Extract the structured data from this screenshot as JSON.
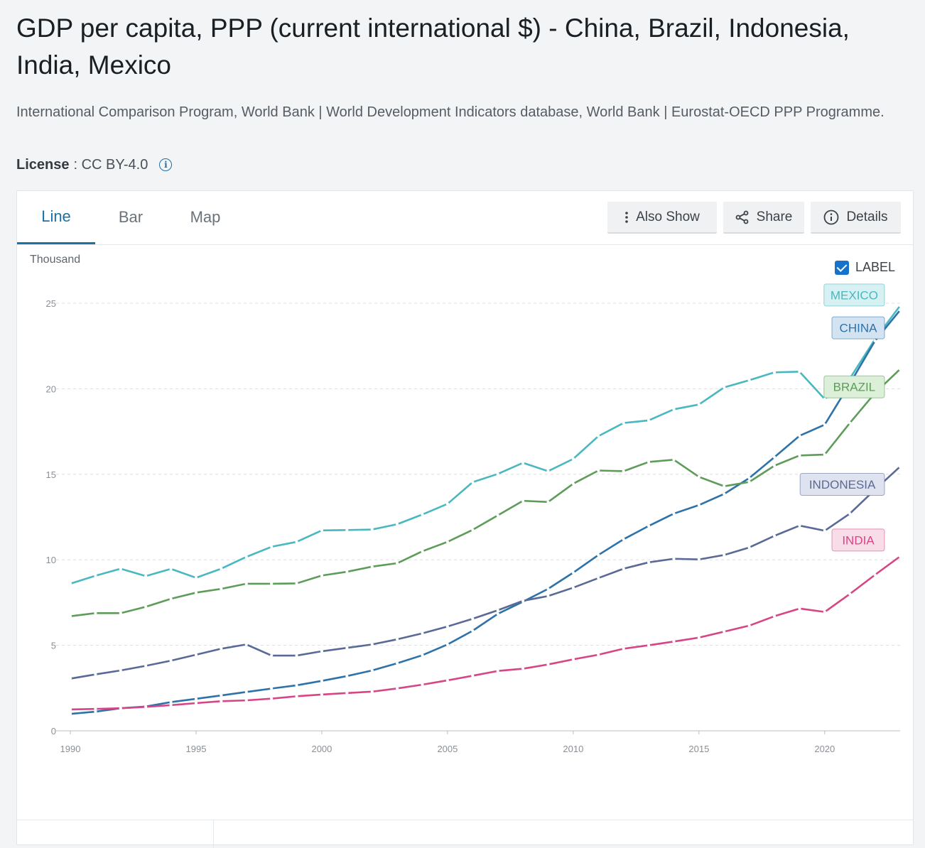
{
  "header": {
    "title": "GDP per capita, PPP (current international $) - China, Brazil, Indonesia, India, Mexico",
    "source": "International Comparison Program, World Bank | World Development Indicators database, World Bank | Eurostat-OECD PPP Programme.",
    "license_key": "License",
    "license_value": ": CC BY-4.0"
  },
  "tabs": [
    {
      "label": "Line",
      "active": true
    },
    {
      "label": "Bar",
      "active": false
    },
    {
      "label": "Map",
      "active": false
    }
  ],
  "buttons": {
    "also_show": "Also Show",
    "share": "Share",
    "details": "Details"
  },
  "chart_controls": {
    "unit_label": "Thousand",
    "label_toggle": "LABEL",
    "label_checked": true
  },
  "colors": {
    "accent": "#1d6fa8",
    "checkbox": "#1872c9"
  },
  "chart_data": {
    "type": "line",
    "ylabel": "Thousand",
    "ylim": [
      0,
      25
    ],
    "yticks": [
      0,
      5,
      10,
      15,
      20,
      25
    ],
    "xlim": [
      1990,
      2023
    ],
    "xticks": [
      1990,
      1995,
      2000,
      2005,
      2010,
      2015,
      2020
    ],
    "grid": true,
    "x": [
      1990,
      1991,
      1992,
      1993,
      1994,
      1995,
      1996,
      1997,
      1998,
      1999,
      2000,
      2001,
      2002,
      2003,
      2004,
      2005,
      2006,
      2007,
      2008,
      2009,
      2010,
      2011,
      2012,
      2013,
      2014,
      2015,
      2016,
      2017,
      2018,
      2019,
      2020,
      2021,
      2022,
      2023
    ],
    "series": [
      {
        "name": "MEXICO",
        "color": "#4ab8c1",
        "label_bg": "#d7f0f2",
        "values": [
          8.6,
          9.07,
          9.48,
          9.05,
          9.47,
          8.95,
          9.48,
          10.17,
          10.76,
          11.05,
          11.72,
          11.74,
          11.77,
          12.08,
          12.65,
          13.27,
          14.54,
          15.02,
          15.67,
          15.18,
          15.9,
          17.23,
          18.0,
          18.15,
          18.8,
          19.08,
          20.08,
          20.5,
          20.96,
          21.0,
          19.4,
          20.6,
          22.9,
          24.86
        ]
      },
      {
        "name": "CHINA",
        "color": "#2d72a8",
        "label_bg": "#d3e3f2",
        "values": [
          0.99,
          1.12,
          1.32,
          1.42,
          1.68,
          1.87,
          2.07,
          2.27,
          2.47,
          2.66,
          2.92,
          3.2,
          3.53,
          3.95,
          4.42,
          5.05,
          5.85,
          6.84,
          7.55,
          8.3,
          9.25,
          10.28,
          11.2,
          11.98,
          12.7,
          13.2,
          13.85,
          14.78,
          16.0,
          17.25,
          17.9,
          20.3,
          22.8,
          24.6
        ]
      },
      {
        "name": "BRAZIL",
        "color": "#5e9c5a",
        "label_bg": "#dcefd9",
        "values": [
          6.7,
          6.88,
          6.88,
          7.25,
          7.72,
          8.08,
          8.3,
          8.6,
          8.6,
          8.62,
          9.08,
          9.3,
          9.6,
          9.8,
          10.5,
          11.05,
          11.75,
          12.6,
          13.45,
          13.38,
          14.45,
          15.22,
          15.18,
          15.72,
          15.85,
          14.85,
          14.3,
          14.55,
          15.5,
          16.1,
          16.15,
          18.0,
          19.75,
          21.15
        ]
      },
      {
        "name": "INDONESIA",
        "color": "#5a6a96",
        "label_bg": "#dfe2ef",
        "values": [
          3.05,
          3.3,
          3.53,
          3.8,
          4.1,
          4.45,
          4.8,
          5.05,
          4.4,
          4.4,
          4.65,
          4.85,
          5.05,
          5.35,
          5.7,
          6.1,
          6.55,
          7.05,
          7.6,
          7.88,
          8.37,
          8.93,
          9.48,
          9.85,
          10.06,
          10.02,
          10.28,
          10.72,
          11.4,
          12.0,
          11.7,
          12.7,
          14.1,
          15.45
        ]
      },
      {
        "name": "INDIA",
        "color": "#d64585",
        "label_bg": "#f8dde8",
        "values": [
          1.25,
          1.28,
          1.32,
          1.4,
          1.5,
          1.62,
          1.73,
          1.78,
          1.88,
          2.02,
          2.12,
          2.21,
          2.29,
          2.48,
          2.7,
          2.95,
          3.22,
          3.5,
          3.63,
          3.88,
          4.18,
          4.45,
          4.8,
          5.0,
          5.22,
          5.45,
          5.8,
          6.15,
          6.7,
          7.15,
          6.95,
          8.0,
          9.12,
          10.2
        ]
      }
    ]
  }
}
